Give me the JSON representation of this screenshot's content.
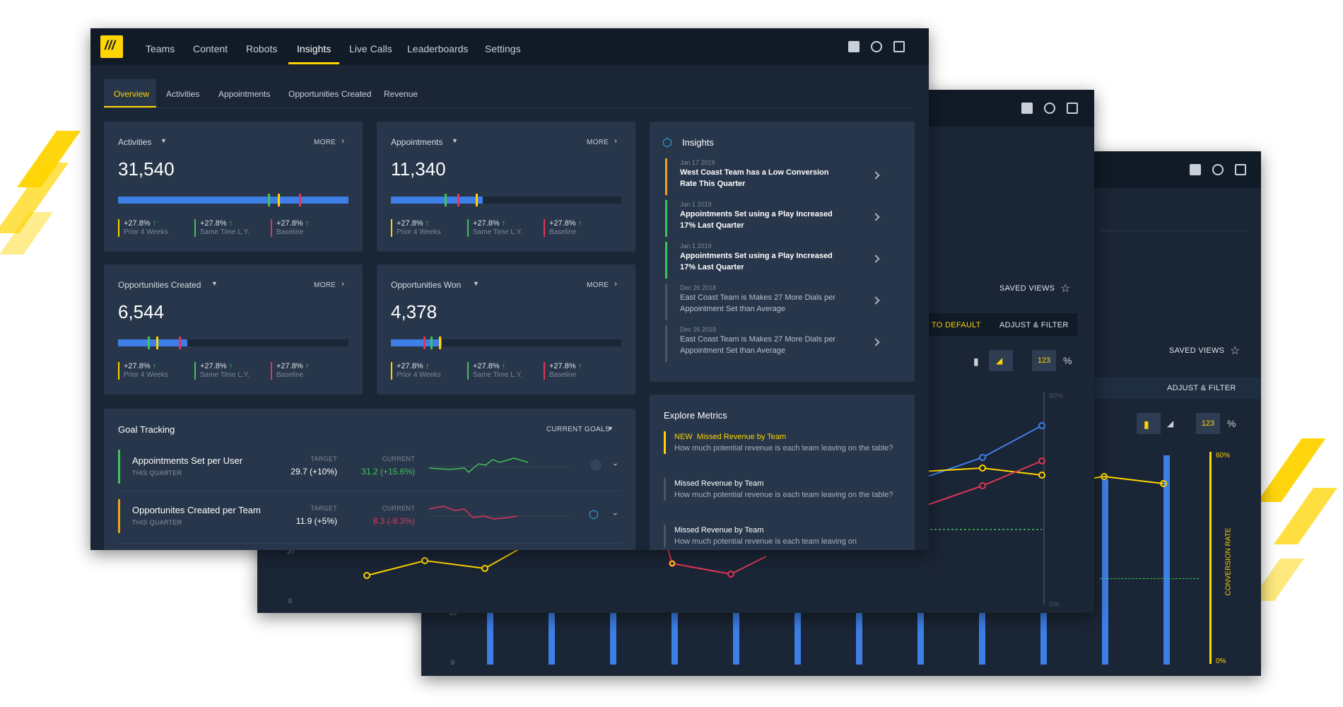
{
  "colors": {
    "accent": "#ffd400",
    "blue": "#3d7fe7",
    "green": "#3fc35a",
    "red": "#e0365a",
    "orange": "#f0a020",
    "panel": "#27364a",
    "navbar": "#111a27"
  },
  "nav": {
    "logo": "logo-mark",
    "items": [
      {
        "label": "Teams",
        "active": false
      },
      {
        "label": "Content",
        "active": false
      },
      {
        "label": "Robots",
        "active": false
      },
      {
        "label": "Insights",
        "active": true
      },
      {
        "label": "Live Calls",
        "active": false
      },
      {
        "label": "Leaderboards",
        "active": false
      },
      {
        "label": "Settings",
        "active": false
      }
    ],
    "icons": [
      "help-icon",
      "billing-icon",
      "logout-icon"
    ]
  },
  "subtabs": [
    {
      "label": "Overview",
      "active": true
    },
    {
      "label": "Activities",
      "active": false
    },
    {
      "label": "Appointments",
      "active": false
    },
    {
      "label": "Opportunities Created",
      "active": false
    },
    {
      "label": "Revenue",
      "active": false
    }
  ],
  "metrics": [
    {
      "title": "Activities",
      "more": "MORE",
      "value": "31,540",
      "progress": 1.0,
      "stats": [
        {
          "v": "+27.8%",
          "l": "Prior 4 Weeks",
          "c": "#ffd400"
        },
        {
          "v": "+27.8%",
          "l": "Same Time L.Y.",
          "c": "#3fc35a"
        },
        {
          "v": "+27.8%",
          "l": "Baseline",
          "c": "#e0365a"
        }
      ]
    },
    {
      "title": "Appointments",
      "more": "MORE",
      "value": "11,340",
      "progress": 0.4,
      "stats": [
        {
          "v": "+27.8%",
          "l": "Prior 4 Weeks",
          "c": "#ffd400"
        },
        {
          "v": "+27.8%",
          "l": "Same Time L.Y.",
          "c": "#3fc35a"
        },
        {
          "v": "+27.8%",
          "l": "Baseline",
          "c": "#e0365a"
        }
      ]
    },
    {
      "title": "Opportunities Created",
      "more": "MORE",
      "value": "6,544",
      "progress": 0.3,
      "stats": [
        {
          "v": "+27.8%",
          "l": "Prior 4 Weeks",
          "c": "#ffd400"
        },
        {
          "v": "+27.8%",
          "l": "Same Time L.Y.",
          "c": "#3fc35a"
        },
        {
          "v": "+27.8%",
          "l": "Baseline",
          "c": "#e0365a"
        }
      ]
    },
    {
      "title": "Opportunities Won",
      "more": "MORE",
      "value": "4,378",
      "progress": 0.22,
      "stats": [
        {
          "v": "+27.8%",
          "l": "Prior 4 Weeks",
          "c": "#ffd400"
        },
        {
          "v": "+27.8%",
          "l": "Same Time L.Y.",
          "c": "#3fc35a"
        },
        {
          "v": "+27.8%",
          "l": "Baseline",
          "c": "#e0365a"
        }
      ]
    }
  ],
  "insights": {
    "title": "Insights",
    "items": [
      {
        "date": "Jan 17 2019",
        "text": "West Coast Team has a Low Conversion Rate This Quarter",
        "color": "#f0a020",
        "bold": true
      },
      {
        "date": "Jan 1 2019",
        "text": "Appointments Set using a Play Increased 17% Last Quarter",
        "color": "#3fc35a",
        "bold": true
      },
      {
        "date": "Jan 1 2019",
        "text": "Appointments Set using a Play Increased 17% Last Quarter",
        "color": "#3fc35a",
        "bold": true
      },
      {
        "date": "Dec 26 2018",
        "text": "East Coast Team is Makes 27 More Dials per Appointment Set than Average",
        "color": "#4a5668",
        "bold": false
      },
      {
        "date": "Dec 26 2018",
        "text": "East Coast Team is Makes 27 More Dials per Appointment Set than Average",
        "color": "#4a5668",
        "bold": false
      }
    ]
  },
  "explore": {
    "title": "Explore Metrics",
    "items": [
      {
        "tag": "NEW",
        "title": "Missed Revenue by Team",
        "desc": "How much potential revenue is each team leaving on the table?",
        "highlight": true
      },
      {
        "tag": "",
        "title": "Missed Revenue by Team",
        "desc": "How much potential revenue is each team leaving on the table?",
        "highlight": false
      },
      {
        "tag": "",
        "title": "Missed Revenue by Team",
        "desc": "How much potential revenue is each team leaving on",
        "highlight": false
      }
    ]
  },
  "goals": {
    "title": "Goal Tracking",
    "filter": "CURRENT GOALS",
    "target_label": "TARGET",
    "current_label": "CURRENT",
    "rows": [
      {
        "name": "Appointments Set per User",
        "period": "THIS QUARTER",
        "target": "29.7 (+10%)",
        "current": "31.2 (+15.6%)",
        "color": "#3fc35a",
        "bar": "#3fc35a"
      },
      {
        "name": "Opportunites Created per Team",
        "period": "THIS QUARTER",
        "target": "11.9 (+5%)",
        "current": "8.3 (-8.3%)",
        "color": "#e0365a",
        "bar": "#f0a020"
      }
    ]
  },
  "back": {
    "saved_views": "SAVED VIEWS",
    "reset": "T TO DEFAULT",
    "adjust": "ADJUST & FILTER",
    "num_toggle": "123",
    "pct_toggle": "%",
    "axis_60": "60%",
    "axis_0": "0%",
    "conversion_rate": "CONVERSION RATE",
    "y_20": "20",
    "y_0": "0"
  }
}
